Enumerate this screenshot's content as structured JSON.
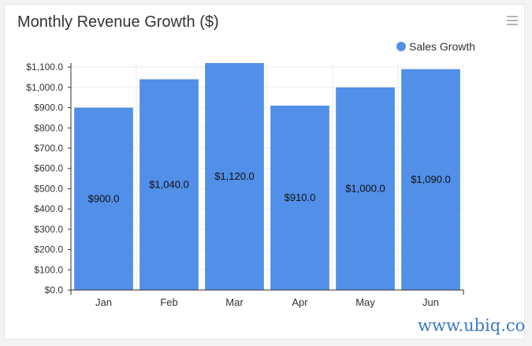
{
  "card": {
    "title": "Monthly Revenue Growth ($)"
  },
  "menu_icon": "hamburger-menu-icon",
  "watermark": "www.ubiq.co",
  "colors": {
    "bar": "#518fe8",
    "grid": "#eeeeee",
    "axis": "#333333",
    "text": "#333333",
    "watermark": "#3b78c5"
  },
  "chart_data": {
    "type": "bar",
    "title": "Monthly Revenue Growth ($)",
    "xlabel": "",
    "ylabel": "",
    "categories": [
      "Jan",
      "Feb",
      "Mar",
      "Apr",
      "May",
      "Jun"
    ],
    "series": [
      {
        "name": "Sales Growth",
        "values": [
          900,
          1040,
          1120,
          910,
          1000,
          1090
        ],
        "labels": [
          "$900.0",
          "$1,040.0",
          "$1,120.0",
          "$910.0",
          "$1,000.0",
          "$1,090.0"
        ]
      }
    ],
    "ylim": [
      0,
      1120
    ],
    "yticks": [
      0,
      100,
      200,
      300,
      400,
      500,
      600,
      700,
      800,
      900,
      1000,
      1100
    ],
    "ytick_labels": [
      "$0.0",
      "$100.0",
      "$200.0",
      "$300.0",
      "$400.0",
      "$500.0",
      "$600.0",
      "$700.0",
      "$800.0",
      "$900.0",
      "$1,000.0",
      "$1,100.0"
    ],
    "legend": {
      "position": "top-right",
      "entries": [
        "Sales Growth"
      ]
    },
    "grid": true
  }
}
